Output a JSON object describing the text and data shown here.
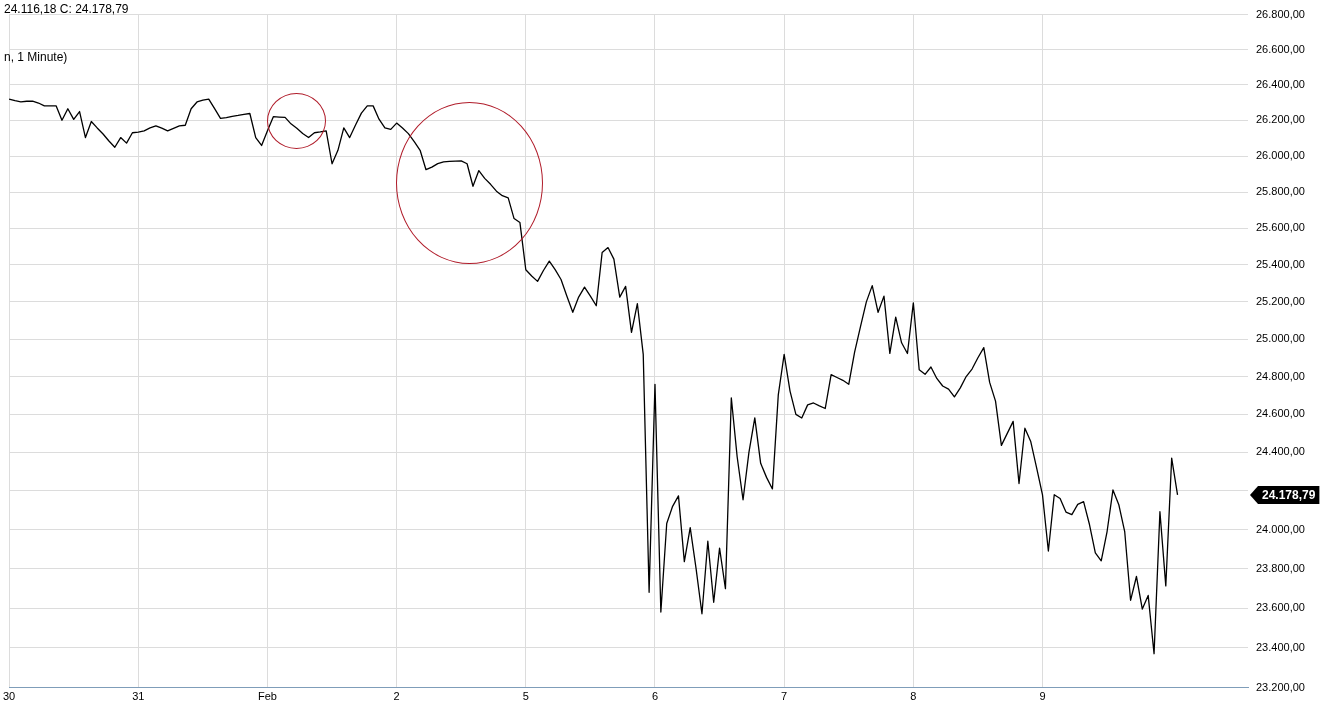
{
  "chart_data": {
    "type": "line",
    "log": "y",
    "grid": true,
    "legend": false,
    "marker": "none",
    "line_style": "solid",
    "annotations": [
      "24.116,18  C: 24.178,79",
      "n, 1 Minute)",
      "24.178,79"
    ],
    "categories": [
      "30",
      null,
      null,
      null,
      null,
      null,
      null,
      null,
      null,
      null,
      null,
      null,
      null,
      null,
      null,
      null,
      null,
      null,
      null,
      null,
      null,
      null,
      "31",
      null,
      null,
      null,
      null,
      null,
      null,
      null,
      null,
      null,
      null,
      null,
      null,
      null,
      null,
      null,
      null,
      null,
      null,
      null,
      null,
      null,
      "Feb",
      null,
      null,
      null,
      null,
      null,
      null,
      null,
      null,
      null,
      null,
      null,
      null,
      null,
      null,
      null,
      null,
      null,
      null,
      null,
      null,
      null,
      "2",
      null,
      null,
      null,
      null,
      null,
      null,
      null,
      null,
      null,
      null,
      null,
      null,
      null,
      null,
      null,
      null,
      null,
      null,
      null,
      null,
      null,
      "5",
      null,
      null,
      null,
      null,
      null,
      null,
      null,
      null,
      null,
      null,
      null,
      null,
      null,
      null,
      null,
      null,
      null,
      null,
      null,
      null,
      null,
      "6",
      null,
      null,
      null,
      null,
      null,
      null,
      null,
      null,
      null,
      null,
      null,
      null,
      null,
      null,
      null,
      null,
      null,
      null,
      null,
      null,
      null,
      "7",
      null,
      null,
      null,
      null,
      null,
      null,
      null,
      null,
      null,
      null,
      null,
      null,
      null,
      null,
      null,
      null,
      null,
      null,
      null,
      null,
      null,
      "8",
      null,
      null,
      null,
      null,
      null,
      null,
      null,
      null,
      null,
      null,
      null,
      null,
      null,
      null,
      null,
      null,
      null,
      null,
      null,
      null,
      null,
      "9",
      null,
      null,
      null,
      null,
      null,
      null,
      null,
      null,
      null,
      null,
      null,
      null,
      null,
      null,
      null,
      null,
      null,
      null,
      null,
      null,
      null,
      null,
      null,
      null,
      null,
      null,
      null,
      null,
      null,
      null,
      null,
      null,
      null,
      null,
      null
    ],
    "ylim": [
      23200,
      26800
    ],
    "yticks": [
      {
        "value": 23200,
        "label": "23.200,00"
      },
      {
        "value": 23400,
        "label": "23.400,00"
      },
      {
        "value": 23600,
        "label": "23.600,00"
      },
      {
        "value": 23800,
        "label": "23.800,00"
      },
      {
        "value": 24000,
        "label": "24.000,00"
      },
      {
        "value": 24200,
        "label": null
      },
      {
        "value": 24400,
        "label": "24.400,00"
      },
      {
        "value": 24600,
        "label": "24.600,00"
      },
      {
        "value": 24800,
        "label": "24.800,00"
      },
      {
        "value": 25000,
        "label": "25.000,00"
      },
      {
        "value": 25200,
        "label": "25.200,00"
      },
      {
        "value": 25400,
        "label": "25.400,00"
      },
      {
        "value": 25600,
        "label": "25.600,00"
      },
      {
        "value": 25800,
        "label": "25.800,00"
      },
      {
        "value": 26000,
        "label": "26.000,00"
      },
      {
        "value": 26200,
        "label": "26.200,00"
      },
      {
        "value": 26400,
        "label": "26.400,00"
      },
      {
        "value": 26600,
        "label": "26.600,00"
      },
      {
        "value": 26800,
        "label": "26.800,00"
      }
    ],
    "series": [
      {
        "color": "#000000",
        "values": [
          26319,
          26310,
          26304,
          26307,
          26308,
          26297,
          26281,
          26281,
          26281,
          26200,
          26265,
          26205,
          26249,
          26103,
          26193,
          26157,
          26123,
          26084,
          26049,
          26103,
          26072,
          26130,
          26134,
          26141,
          26157,
          26169,
          26156,
          26141,
          26155,
          26168,
          26172,
          26265,
          26303,
          26313,
          26319,
          26265,
          26211,
          26215,
          26222,
          26227,
          26233,
          26238,
          26103,
          26059,
          26141,
          26220,
          26218,
          26216,
          26180,
          26155,
          26126,
          26103,
          26130,
          26135,
          26141,
          25957,
          26032,
          26157,
          26103,
          26173,
          26240,
          26281,
          26281,
          26206,
          26157,
          26149,
          26184,
          26157,
          26125,
          26081,
          26032,
          25924,
          25938,
          25958,
          25968,
          25970,
          25972,
          25973,
          25957,
          25832,
          25919,
          25876,
          25843,
          25805,
          25780,
          25768,
          25654,
          25632,
          25374,
          25340,
          25311,
          25370,
          25421,
          25375,
          25321,
          25230,
          25144,
          25226,
          25280,
          25231,
          25179,
          25468,
          25495,
          25432,
          25226,
          25284,
          25036,
          25190,
          24918,
          23680,
          24759,
          23580,
          24031,
          24120,
          24174,
          23836,
          24010,
          23800,
          23571,
          23940,
          23629,
          23905,
          23698,
          24687,
          24376,
          24154,
          24400,
          24581,
          24343,
          24270,
          24210,
          24703,
          24918,
          24723,
          24600,
          24581,
          24650,
          24660,
          24645,
          24631,
          24810,
          24795,
          24780,
          24759,
          24930,
          25067,
          25200,
          25288,
          25144,
          25231,
          24923,
          25118,
          24980,
          24923,
          25195,
          24836,
          24812,
          24851,
          24790,
          24750,
          24733,
          24692,
          24740,
          24800,
          24840,
          24900,
          24954,
          24769,
          24670,
          24437,
          24500,
          24563,
          24238,
          24527,
          24457,
          24320,
          24179,
          23890,
          24180,
          24160,
          24090,
          24077,
          24130,
          24144,
          24026,
          23880,
          23840,
          23990,
          24205,
          24128,
          23990,
          23639,
          23760,
          23595,
          23664,
          23370,
          24092,
          23712,
          24370,
          24178.79,
          null,
          null,
          null,
          null,
          null,
          null,
          null,
          null,
          null,
          null,
          null,
          null
        ]
      }
    ]
  }
}
